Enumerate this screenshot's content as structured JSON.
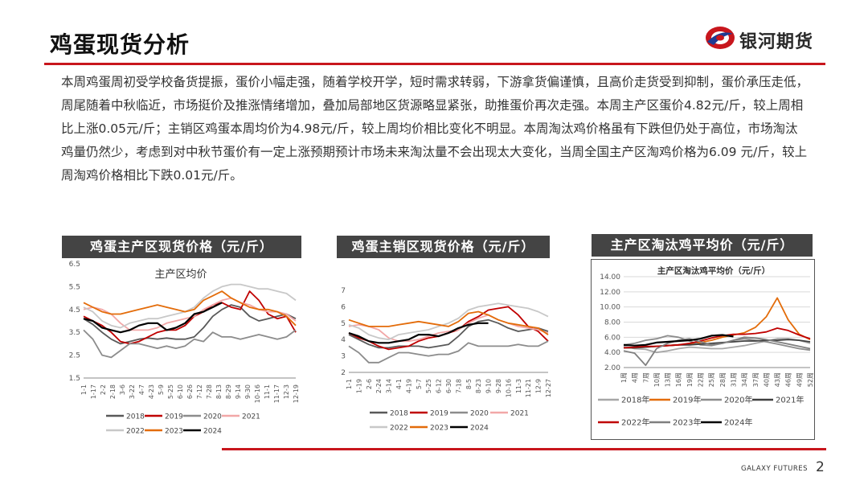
{
  "header": {
    "title": "鸡蛋现货分析",
    "brand": "银河期货"
  },
  "summary": "本周鸡蛋周初受学校备货提振，蛋价小幅走强，随着学校开学，短时需求转弱，下游拿货偏谨慎，且高价走货受到抑制，蛋价承压走低，周尾随着中秋临近，市场挺价及推涨情绪增加，叠加局部地区货源略显紧张，助推蛋价再次走强。本周主产区蛋价4.82元/斤，较上周相比上涨0.05元/斤；主销区鸡蛋本周均价为4.98元/斤，较上周均价相比变化不明显。本周淘汰鸡价格虽有下跌但仍处于高位，市场淘汰鸡量仍然少，考虑到对中秋节蛋价有一定上涨预期预计市场未来淘汰量不会出现太大变化，当周全国主产区淘鸡价格为6.09 元/斤，较上周淘鸡价格相比下跌0.01元/斤。",
  "footer": {
    "brand": "GALAXY FUTURES",
    "page": "2"
  },
  "colors": {
    "accent": "#c8161d",
    "title_bg": "#444444"
  },
  "chart_data": [
    {
      "id": "main-producing",
      "type": "line",
      "header": "鸡蛋主产区现货价格（元/斤）",
      "title": "主产区均价",
      "ylim": [
        1.5,
        6.5
      ],
      "yticks": [
        1.5,
        2.5,
        3.5,
        4.5,
        5.5,
        6.5
      ],
      "yticklabels": [
        "1.5",
        "2.5",
        "3.5",
        "4.5",
        "5.5",
        "6.5"
      ],
      "xticks": [
        "1-1",
        "1-17",
        "2-2",
        "2-18",
        "3-6",
        "3-22",
        "4-7",
        "4-23",
        "5-9",
        "5-25",
        "6-10",
        "6-26",
        "7-12",
        "7-28",
        "8-13",
        "8-29",
        "9-14",
        "9-30",
        "10-16",
        "11-1",
        "11-17",
        "12-3",
        "12-19"
      ],
      "series": [
        {
          "name": "2018",
          "color": "#595959",
          "values": [
            4.1,
            3.85,
            3.5,
            3.2,
            3.0,
            3.1,
            3.2,
            3.25,
            3.2,
            3.25,
            3.2,
            3.2,
            3.3,
            3.7,
            4.2,
            4.5,
            4.7,
            4.6,
            4.2,
            4.0,
            4.1,
            4.2,
            4.3,
            4.1
          ]
        },
        {
          "name": "2019",
          "color": "#c00000",
          "values": [
            4.2,
            4.0,
            3.8,
            3.5,
            3.1,
            3.0,
            3.1,
            3.3,
            3.5,
            3.6,
            3.6,
            3.8,
            4.2,
            4.4,
            4.7,
            4.8,
            4.6,
            4.5,
            5.3,
            4.9,
            4.3,
            4.1,
            4.2,
            3.5
          ]
        },
        {
          "name": "2020",
          "color": "#8c8c8c",
          "values": [
            3.6,
            3.2,
            2.5,
            2.4,
            2.7,
            3.0,
            3.0,
            2.9,
            2.8,
            2.9,
            2.8,
            2.9,
            3.2,
            3.1,
            3.5,
            3.3,
            3.3,
            3.2,
            3.3,
            3.4,
            3.3,
            3.2,
            3.3,
            3.6
          ]
        },
        {
          "name": "2021",
          "color": "#f2a7a7",
          "values": [
            4.5,
            4.6,
            4.5,
            4.3,
            3.9,
            3.6,
            3.6,
            3.6,
            3.7,
            3.9,
            4.0,
            4.1,
            4.2,
            4.5,
            4.7,
            4.9,
            5.0,
            4.8,
            4.7,
            4.5,
            4.4,
            4.4,
            4.3,
            4.0
          ]
        },
        {
          "name": "2022",
          "color": "#c8c8c8",
          "values": [
            4.6,
            4.4,
            4.0,
            3.8,
            3.7,
            3.9,
            4.0,
            4.1,
            4.1,
            4.2,
            4.3,
            4.4,
            4.6,
            5.0,
            5.3,
            5.5,
            5.6,
            5.6,
            5.5,
            5.4,
            5.4,
            5.3,
            5.2,
            4.9
          ]
        },
        {
          "name": "2023",
          "color": "#e36c0a",
          "values": [
            4.8,
            4.6,
            4.4,
            4.3,
            4.3,
            4.4,
            4.5,
            4.6,
            4.7,
            4.6,
            4.5,
            4.4,
            4.5,
            4.9,
            5.1,
            5.3,
            5.0,
            4.8,
            4.6,
            4.5,
            4.5,
            4.4,
            4.2,
            3.8
          ]
        },
        {
          "name": "2024",
          "color": "#000000",
          "values": [
            4.1,
            4.0,
            3.7,
            3.6,
            3.5,
            3.6,
            3.8,
            3.9,
            3.9,
            3.6,
            3.7,
            3.9,
            4.3,
            4.4,
            4.6,
            4.8
          ]
        }
      ]
    },
    {
      "id": "main-selling",
      "type": "line",
      "header": "鸡蛋主销区现货价格（元/斤）",
      "title": "主销区均价",
      "ylim": [
        2,
        7
      ],
      "yticks": [
        2,
        3,
        4,
        5,
        6,
        7
      ],
      "yticklabels": [
        "2",
        "3",
        "4",
        "5",
        "6",
        "7"
      ],
      "xticks": [
        "1-1",
        "1-19",
        "2-6",
        "2-24",
        "3-14",
        "4-1",
        "4-19",
        "5-7",
        "5-25",
        "6-12",
        "6-30",
        "7-18",
        "8-5",
        "8-23",
        "9-10",
        "9-28",
        "10-16",
        "11-3",
        "11-21",
        "12-9",
        "12-27"
      ],
      "series": [
        {
          "name": "2018",
          "color": "#595959",
          "values": [
            4.3,
            4.0,
            3.7,
            3.5,
            3.5,
            3.6,
            3.6,
            3.6,
            3.5,
            3.6,
            3.7,
            4.2,
            4.8,
            5.1,
            5.2,
            5.0,
            4.7,
            4.5,
            4.6,
            4.7,
            4.5
          ]
        },
        {
          "name": "2019",
          "color": "#c00000",
          "values": [
            4.4,
            4.1,
            3.9,
            3.6,
            3.4,
            3.5,
            3.6,
            3.9,
            4.1,
            4.2,
            4.4,
            4.6,
            5.1,
            5.4,
            5.8,
            5.9,
            6.0,
            5.5,
            4.8,
            4.5,
            3.9
          ]
        },
        {
          "name": "2020",
          "color": "#8c8c8c",
          "values": [
            3.6,
            3.2,
            2.6,
            2.6,
            2.9,
            3.2,
            3.2,
            3.1,
            3.0,
            3.1,
            3.1,
            3.3,
            3.8,
            3.6,
            3.6,
            3.6,
            3.6,
            3.7,
            3.6,
            3.6,
            3.9
          ]
        },
        {
          "name": "2021",
          "color": "#f2a7a7",
          "values": [
            4.8,
            4.9,
            4.8,
            4.6,
            4.1,
            3.9,
            3.9,
            4.0,
            4.2,
            4.4,
            4.5,
            4.6,
            5.0,
            5.3,
            5.5,
            5.2,
            5.0,
            4.8,
            4.7,
            4.6,
            4.4
          ]
        },
        {
          "name": "2022",
          "color": "#c8c8c8",
          "values": [
            4.9,
            4.7,
            4.3,
            4.1,
            4.0,
            4.3,
            4.4,
            4.5,
            4.6,
            4.8,
            5.0,
            5.3,
            5.8,
            6.0,
            6.1,
            6.2,
            6.1,
            6.0,
            5.9,
            5.7,
            5.4
          ]
        },
        {
          "name": "2023",
          "color": "#e36c0a",
          "values": [
            5.2,
            5.0,
            4.8,
            4.8,
            4.8,
            4.9,
            5.0,
            5.1,
            5.0,
            4.9,
            4.8,
            5.1,
            5.6,
            5.7,
            5.5,
            5.2,
            5.0,
            4.9,
            4.8,
            4.7,
            4.3
          ]
        },
        {
          "name": "2024",
          "color": "#000000",
          "values": [
            4.4,
            4.2,
            3.9,
            3.8,
            3.8,
            3.9,
            4.0,
            4.3,
            4.3,
            4.2,
            4.4,
            4.7,
            4.9,
            5.0,
            5.0
          ]
        }
      ]
    },
    {
      "id": "culled-hen",
      "type": "line",
      "header": "主产区淘汰鸡平均价（元/斤）",
      "title": "主产区淘汰鸡平均价（元/斤）",
      "ylim": [
        2,
        14
      ],
      "yticks": [
        2,
        4,
        6,
        8,
        10,
        12,
        14
      ],
      "yticklabels": [
        "2.00",
        "4.00",
        "6.00",
        "8.00",
        "10.00",
        "12.00",
        "14.00"
      ],
      "xticks": [
        "1周",
        "4周",
        "7周",
        "10周",
        "13周",
        "16周",
        "19周",
        "22周",
        "25周",
        "28周",
        "31周",
        "34周",
        "37周",
        "40周",
        "43周",
        "46周",
        "49周",
        "52周"
      ],
      "series": [
        {
          "name": "2018年",
          "color": "#a6a6a6",
          "values": [
            4.8,
            4.5,
            4.4,
            4.0,
            4.2,
            4.5,
            4.7,
            4.6,
            4.5,
            4.5,
            4.7,
            4.9,
            5.2,
            5.5,
            5.8,
            5.8,
            5.6,
            5.2
          ]
        },
        {
          "name": "2019年",
          "color": "#e36c0a",
          "values": [
            4.6,
            4.6,
            4.7,
            4.8,
            4.9,
            5.0,
            5.1,
            5.3,
            5.6,
            6.0,
            6.3,
            6.6,
            7.3,
            8.7,
            11.2,
            8.3,
            6.4,
            5.7
          ]
        },
        {
          "name": "2020年",
          "color": "#8c8c8c",
          "values": [
            5.0,
            5.2,
            5.6,
            5.8,
            6.2,
            6.0,
            5.5,
            5.0,
            4.9,
            5.2,
            5.6,
            5.8,
            5.6,
            5.4,
            5.1,
            4.8,
            4.5,
            4.3
          ]
        },
        {
          "name": "2021年",
          "color": "#404040",
          "values": [
            4.6,
            4.6,
            4.7,
            4.8,
            4.9,
            5.0,
            5.0,
            5.1,
            5.2,
            5.3,
            5.4,
            5.5,
            5.5,
            5.6,
            5.6,
            5.7,
            5.6,
            5.4
          ]
        },
        {
          "name": "2022年",
          "color": "#c00000",
          "values": [
            4.6,
            4.7,
            4.8,
            4.8,
            4.9,
            5.0,
            5.2,
            5.5,
            5.9,
            6.2,
            6.4,
            6.4,
            6.5,
            6.7,
            7.2,
            6.9,
            6.3,
            5.8
          ]
        },
        {
          "name": "2023年",
          "color": "#7f7f7f",
          "values": [
            4.2,
            3.9,
            2.3,
            4.5,
            5.2,
            5.6,
            5.8,
            5.4,
            5.0,
            5.2,
            5.6,
            6.0,
            5.9,
            5.7,
            5.4,
            5.1,
            4.8,
            4.5
          ]
        },
        {
          "name": "2024年",
          "color": "#000000",
          "values": [
            5.0,
            4.9,
            5.0,
            5.3,
            5.4,
            5.5,
            5.6,
            5.8,
            6.2,
            6.3,
            6.1
          ]
        }
      ]
    }
  ]
}
